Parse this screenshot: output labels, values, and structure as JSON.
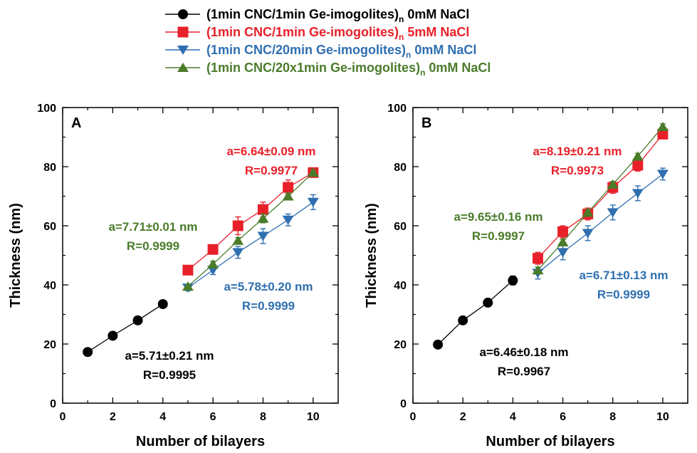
{
  "legend": [
    {
      "label": "(1min CNC/1min Ge-imogolites)",
      "sub": "n",
      "suffix": " 0mM NaCl",
      "color": "#000000",
      "marker": "circle"
    },
    {
      "label": "(1min CNC/1min Ge-imogolites)",
      "sub": "n",
      "suffix": " 5mM NaCl",
      "color": "#e8202a",
      "marker": "square"
    },
    {
      "label": "(1min CNC/20min Ge-imogolites)",
      "sub": "n",
      "suffix": " 0mM NaCl",
      "color": "#2f6fb0",
      "marker": "triangle-down"
    },
    {
      "label": "(1min CNC/20x1min Ge-imogolites)",
      "sub": "n",
      "suffix": " 0mM NaCl",
      "color": "#4a7c2a",
      "marker": "triangle-up"
    }
  ],
  "chart_data": [
    {
      "type": "scatter",
      "panel": "A",
      "xlabel": "Number of bilayers",
      "ylabel": "Thickness (nm)",
      "xlim": [
        0,
        11
      ],
      "ylim": [
        0,
        100
      ],
      "xticks": [
        0,
        2,
        4,
        6,
        8,
        10
      ],
      "yticks": [
        0,
        20,
        40,
        60,
        80,
        100
      ],
      "series": [
        {
          "name": "(1min CNC/1min Ge-imogolites)n 0mM NaCl",
          "color": "#000000",
          "marker": "circle",
          "x": [
            1,
            2,
            3,
            4
          ],
          "y": [
            17.3,
            22.8,
            28,
            33.5
          ],
          "err": [
            0,
            0.8,
            0.8,
            1
          ]
        },
        {
          "name": "(1min CNC/1min Ge-imogolites)n 5mM NaCl",
          "color": "#e8202a",
          "marker": "square",
          "x": [
            5,
            6,
            7,
            8,
            9,
            10
          ],
          "y": [
            45,
            52,
            60,
            65.5,
            73,
            78
          ],
          "err": [
            1,
            1.5,
            3,
            2.5,
            2.5,
            1.5
          ]
        },
        {
          "name": "(1min CNC/20min Ge-imogolites)n 0mM NaCl",
          "color": "#2f6fb0",
          "marker": "triangle-down",
          "x": [
            5,
            6,
            7,
            8,
            9,
            10
          ],
          "y": [
            39,
            45,
            51,
            56.5,
            62,
            68
          ],
          "err": [
            1,
            1.5,
            2,
            2.5,
            2,
            2.5
          ]
        },
        {
          "name": "(1min CNC/20x1min Ge-imogolites)n 0mM NaCl",
          "color": "#4a7c2a",
          "marker": "triangle-up",
          "x": [
            5,
            6,
            7,
            8,
            9,
            10
          ],
          "y": [
            39.5,
            47,
            55,
            62.5,
            70,
            78
          ],
          "err": [
            0.5,
            1,
            1,
            1.5,
            1,
            1
          ]
        }
      ],
      "annotations": [
        {
          "lines": [
            "a=6.64±0.09 nm",
            "R=0.9977"
          ],
          "color": "#e8202a"
        },
        {
          "lines": [
            "a=7.71±0.01 nm",
            "R=0.9999"
          ],
          "color": "#4a7c2a"
        },
        {
          "lines": [
            "a=5.78±0.20 nm",
            "R=0.9999"
          ],
          "color": "#2f6fb0"
        },
        {
          "lines": [
            "a=5.71±0.21 nm",
            "R=0.9995"
          ],
          "color": "#000000"
        }
      ]
    },
    {
      "type": "scatter",
      "panel": "B",
      "xlabel": "Number of bilayers",
      "ylabel": "Thickness (nm)",
      "xlim": [
        0,
        11
      ],
      "ylim": [
        0,
        100
      ],
      "xticks": [
        0,
        2,
        4,
        6,
        8,
        10
      ],
      "yticks": [
        0,
        20,
        40,
        60,
        80,
        100
      ],
      "series": [
        {
          "name": "(1min CNC/1min Ge-imogolites)n 0mM NaCl",
          "color": "#000000",
          "marker": "circle",
          "x": [
            1,
            2,
            3,
            4
          ],
          "y": [
            19.8,
            28,
            34,
            41.5
          ],
          "err": [
            0.5,
            0.8,
            1,
            1.5
          ]
        },
        {
          "name": "(1min CNC/1min Ge-imogolites)n 5mM NaCl",
          "color": "#e8202a",
          "marker": "square",
          "x": [
            5,
            6,
            7,
            8,
            9,
            10
          ],
          "y": [
            49,
            58,
            64,
            73,
            80.5,
            91
          ],
          "err": [
            2,
            2,
            2,
            2,
            2,
            1.5
          ]
        },
        {
          "name": "(1min CNC/20min Ge-imogolites)n 0mM NaCl",
          "color": "#2f6fb0",
          "marker": "triangle-down",
          "x": [
            5,
            6,
            7,
            8,
            9,
            10
          ],
          "y": [
            44,
            51,
            57.5,
            64.5,
            71,
            77.5
          ],
          "err": [
            2,
            2.5,
            2.5,
            2.5,
            2.5,
            2
          ]
        },
        {
          "name": "(1min CNC/20x1min Ge-imogolites)n 0mM NaCl",
          "color": "#4a7c2a",
          "marker": "triangle-up",
          "x": [
            5,
            6,
            7,
            8,
            9,
            10
          ],
          "y": [
            45,
            54.5,
            64.5,
            74,
            83.5,
            93.5
          ],
          "err": [
            1,
            1,
            1,
            1,
            1,
            1
          ]
        }
      ],
      "annotations": [
        {
          "lines": [
            "a=8.19±0.21 nm",
            "R=0.9973"
          ],
          "color": "#e8202a"
        },
        {
          "lines": [
            "a=9.65±0.16 nm",
            "R=0.9997"
          ],
          "color": "#4a7c2a"
        },
        {
          "lines": [
            "a=6.71±0.13 nm",
            "R=0.9999"
          ],
          "color": "#2f6fb0"
        },
        {
          "lines": [
            "a=6.46±0.18 nm",
            "R=0.9967"
          ],
          "color": "#000000"
        }
      ]
    }
  ]
}
